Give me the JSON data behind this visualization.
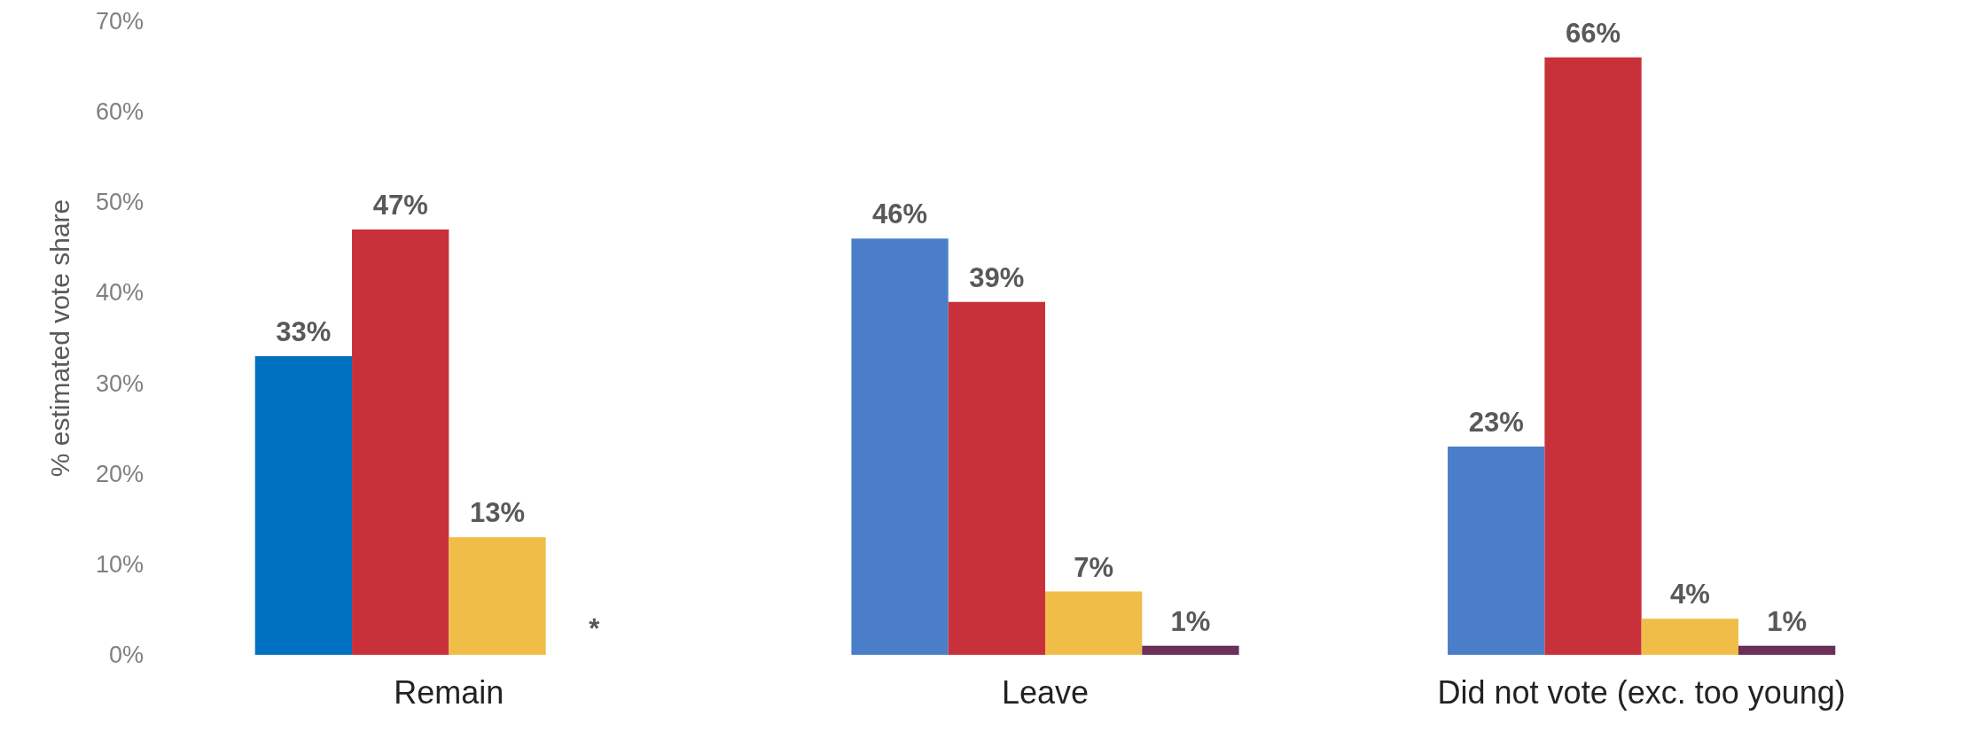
{
  "chart_data": {
    "type": "bar",
    "ylabel": "% estimated vote share",
    "categories": [
      "Remain",
      "Leave",
      "Did not vote (exc. too young)"
    ],
    "series": [
      {
        "color": "#4a7ec8",
        "colors": [
          "#0070c0",
          null,
          null
        ],
        "values": [
          33,
          46,
          23
        ],
        "value_labels": [
          "33%",
          "46%",
          "23%"
        ]
      },
      {
        "color": "#c9313a",
        "values": [
          47,
          39,
          66
        ],
        "value_labels": [
          "47%",
          "39%",
          "66%"
        ]
      },
      {
        "color": "#f0bd48",
        "values": [
          13,
          7,
          4
        ],
        "value_labels": [
          "13%",
          "7%",
          "4%"
        ]
      },
      {
        "color": "#6b3057",
        "values": [
          null,
          1,
          1
        ],
        "value_labels": [
          null,
          "1%",
          "1%"
        ]
      }
    ],
    "ylim": [
      0,
      70
    ],
    "yticks": [
      {
        "value": 0,
        "label": "0%"
      },
      {
        "value": 10,
        "label": "10%"
      },
      {
        "value": 20,
        "label": "20%"
      },
      {
        "value": 30,
        "label": "30%"
      },
      {
        "value": 40,
        "label": "40%"
      },
      {
        "value": 50,
        "label": "50%"
      },
      {
        "value": 60,
        "label": "60%"
      },
      {
        "value": 70,
        "label": "70%"
      }
    ],
    "annotations": [
      "*"
    ],
    "grid": false
  }
}
